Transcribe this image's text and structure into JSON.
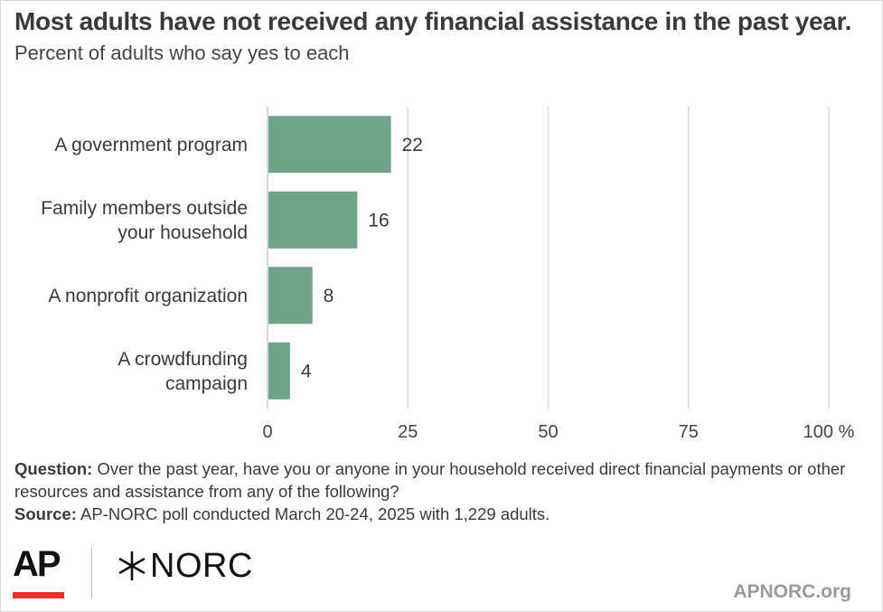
{
  "title": "Most adults have not received any financial assistance in the past year.",
  "subtitle": "Percent of adults who say yes to each",
  "chart_data": {
    "type": "bar",
    "orientation": "horizontal",
    "categories": [
      [
        "A government program"
      ],
      [
        "Family members outside",
        "your household"
      ],
      [
        "A nonprofit organization"
      ],
      [
        "A crowdfunding",
        "campaign"
      ]
    ],
    "values": [
      22,
      16,
      8,
      4
    ],
    "value_labels": [
      "22",
      "16",
      "8",
      "4"
    ],
    "xlim": [
      0,
      100
    ],
    "ticks": [
      0,
      25,
      50,
      75,
      100
    ],
    "tick_labels": [
      "0",
      "25",
      "50",
      "75",
      "100 %"
    ],
    "grid": true,
    "legend": "none",
    "bar_color": "#6fa489",
    "grid_color": "#d9d9d9"
  },
  "notes": {
    "question_label": "Question:",
    "question_text": " Over the past year, have you or anyone in your household received direct financial payments or other resources and assistance from any of the following?",
    "source_label": "Source:",
    "source_text": " AP-NORC poll conducted March 20-24, 2025 with 1,229 adults."
  },
  "logos": {
    "ap": "AP",
    "norc": "NORC",
    "ap_accent_color": "#e5312c"
  },
  "site": "APNORC.org"
}
